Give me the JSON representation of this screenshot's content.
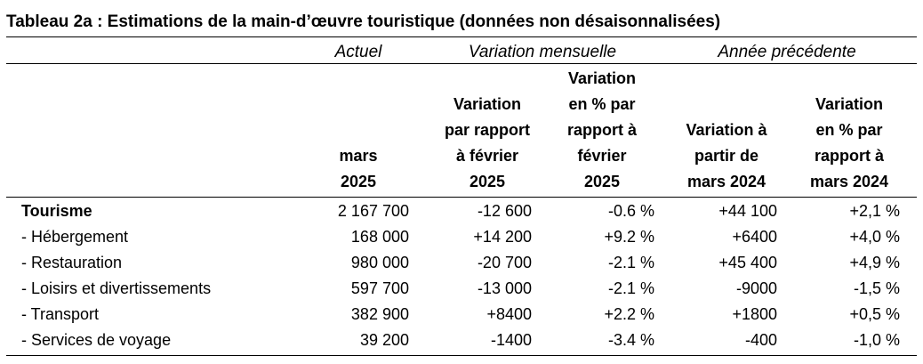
{
  "title": "Tableau 2a : Estimations de la main-d’œuvre touristique (données non désaisonnalisées)",
  "groups": {
    "actuel": "Actuel",
    "variation_mensuelle": "Variation mensuelle",
    "annee_precedente": "Année précédente"
  },
  "headers": [
    "mars\n2025",
    "Variation\npar rapport\nà février\n2025",
    "Variation\nen % par\nrapport à\nfévrier\n2025",
    "Variation à\npartir de\nmars 2024",
    "Variation\nen % par\nrapport à\nmars 2024"
  ],
  "rows": [
    {
      "label": "Tourisme",
      "values": [
        "2 167 700",
        "-12 600",
        "-0.6 %",
        "+44 100",
        "+2,1 %"
      ]
    },
    {
      "label": "- Hébergement",
      "values": [
        "168 000",
        "+14 200",
        "+9.2 %",
        "+6400",
        "+4,0 %"
      ]
    },
    {
      "label": "- Restauration",
      "values": [
        "980 000",
        "-20 700",
        "-2.1 %",
        "+45 400",
        "+4,9 %"
      ]
    },
    {
      "label": "- Loisirs et divertissements",
      "values": [
        "597 700",
        "-13 000",
        "-2.1 %",
        "-9000",
        "-1,5 %"
      ]
    },
    {
      "label": "- Transport",
      "values": [
        "382 900",
        "+8400",
        "+2.2 %",
        "+1800",
        "+0,5 %"
      ]
    },
    {
      "label": "- Services de voyage",
      "values": [
        "39 200",
        "-1400",
        "-3.4 %",
        "-400",
        "-1,0 %"
      ]
    }
  ]
}
